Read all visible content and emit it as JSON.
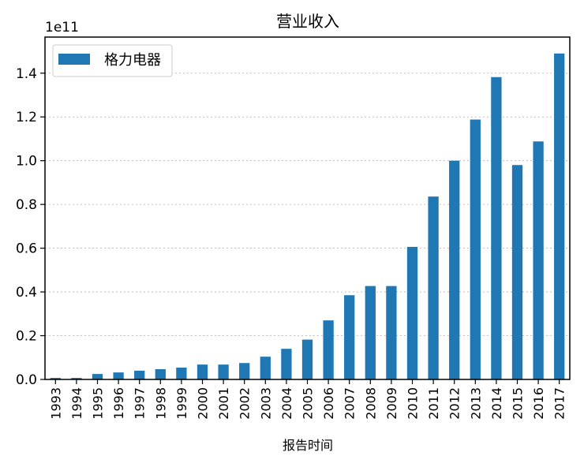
{
  "chart_data": {
    "type": "bar",
    "title": "营业收入",
    "xlabel": "报告时间",
    "ylabel": "",
    "y_offset_label": "1e11",
    "ylim": [
      0,
      1.565
    ],
    "yticks": [
      "0.0",
      "0.2",
      "0.4",
      "0.6",
      "0.8",
      "1.0",
      "1.2",
      "1.4"
    ],
    "grid": "horizontal dashed",
    "legend_position": "top-left",
    "bar_color": "#1f77b4",
    "categories": [
      "1993",
      "1994",
      "1995",
      "1996",
      "1997",
      "1998",
      "1999",
      "2000",
      "2001",
      "2002",
      "2003",
      "2004",
      "2005",
      "2006",
      "2007",
      "2008",
      "2009",
      "2010",
      "2011",
      "2012",
      "2013",
      "2014",
      "2015",
      "2016",
      "2017"
    ],
    "series": [
      {
        "name": "格力电器",
        "values": [
          0.007,
          0.007,
          0.025,
          0.032,
          0.04,
          0.047,
          0.054,
          0.068,
          0.068,
          0.075,
          0.104,
          0.14,
          0.182,
          0.27,
          0.385,
          0.427,
          0.427,
          0.606,
          0.836,
          1.0,
          1.188,
          1.382,
          0.98,
          1.088,
          1.49
        ]
      }
    ]
  }
}
